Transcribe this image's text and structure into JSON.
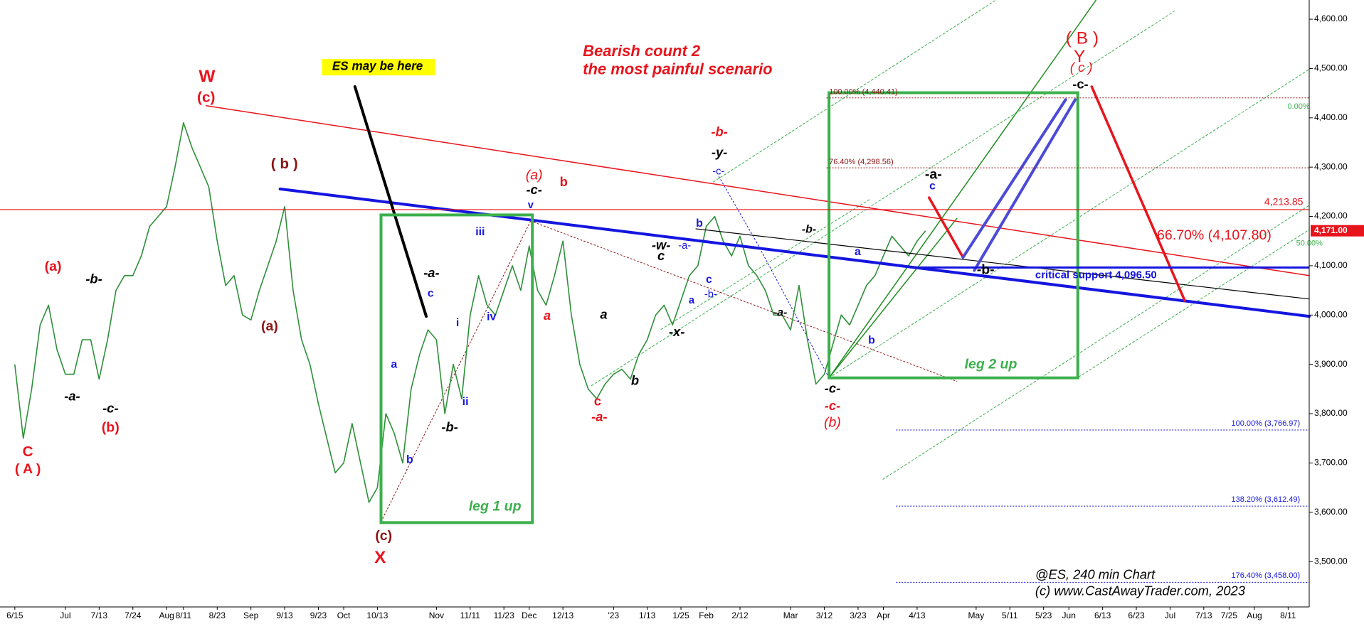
{
  "chart_data": {
    "type": "line",
    "categories": [
      "6/15",
      null,
      null,
      null,
      null,
      null,
      "Jul",
      null,
      null,
      null,
      "7/13",
      null,
      null,
      null,
      "7/24",
      null,
      null,
      null,
      "Aug",
      null,
      "8/11",
      null,
      null,
      null,
      "8/23",
      null,
      null,
      null,
      "Sep",
      null,
      null,
      null,
      "9/13",
      null,
      null,
      null,
      "9/23",
      null,
      null,
      "Oct",
      null,
      null,
      null,
      "10/13",
      null,
      null,
      null,
      null,
      null,
      null,
      "Nov",
      null,
      null,
      null,
      "11/11",
      null,
      null,
      null,
      "11/23",
      null,
      null,
      "Dec",
      null,
      null,
      null,
      "12/13",
      null,
      null,
      null,
      null,
      null,
      "'23",
      null,
      null,
      null,
      "1/13",
      null,
      null,
      null,
      "1/25",
      null,
      null,
      "Feb",
      null,
      null,
      null,
      "2/12",
      null,
      null,
      null,
      null,
      null,
      "Mar",
      null,
      null,
      null,
      "3/12",
      null,
      null,
      null,
      "3/23",
      null,
      null,
      "Apr",
      null,
      null,
      null,
      "4/13",
      null,
      null,
      null,
      null,
      null,
      null,
      "May",
      null,
      null,
      null,
      "5/11",
      null,
      null,
      null,
      "5/23",
      null,
      null,
      "Jun",
      null,
      null,
      null,
      "6/13",
      null,
      null,
      null,
      "6/23",
      null,
      null,
      null,
      "Jul",
      null,
      null,
      null,
      "7/13",
      null,
      null,
      "7/25",
      null,
      null,
      "Aug",
      null,
      null,
      null,
      "8/11",
      null,
      null
    ],
    "series": [
      {
        "color": "#2f8f3a",
        "values": [
          3900,
          3750,
          3850,
          3980,
          4020,
          3930,
          3880,
          3880,
          3950,
          3950,
          3870,
          3950,
          4050,
          4080,
          4080,
          4120,
          4180,
          4200,
          4220,
          4300,
          4390,
          4340,
          4300,
          4260,
          4150,
          4060,
          4080,
          4000,
          3990,
          4050,
          4100,
          4150,
          4220,
          4050,
          3950,
          3900,
          3820,
          3750,
          3680,
          3700,
          3780,
          3700,
          3620,
          3650,
          3800,
          3760,
          3700,
          3850,
          3920,
          3970,
          3950,
          3800,
          3900,
          3830,
          4000,
          4080,
          4020,
          4000,
          4050,
          4100,
          4050,
          4140,
          4050,
          4020,
          4080,
          4150,
          4000,
          3900,
          3850,
          3830,
          3860,
          3880,
          3890,
          3870,
          3920,
          3950,
          4000,
          4020,
          3980,
          4030,
          4080,
          4100,
          4180,
          4200,
          4150,
          4120,
          4160,
          4100,
          4080,
          4050,
          4000,
          4000,
          3970,
          4060,
          3950,
          3860,
          3880,
          3940,
          4000,
          3980,
          4020,
          4060,
          4080,
          4120,
          4160,
          4140,
          4120,
          4150,
          4171,
          null,
          null,
          null,
          null,
          null,
          null,
          null,
          null,
          null,
          null,
          null,
          null,
          null,
          null,
          null,
          null,
          null,
          null,
          null,
          null,
          null,
          null,
          null,
          null,
          null,
          null,
          null,
          null,
          null,
          null,
          null,
          null,
          null,
          null,
          null,
          null,
          null,
          null,
          null,
          null,
          null,
          null,
          null,
          null,
          null
        ]
      }
    ],
    "ylim": [
      3408,
      4639
    ],
    "yticks": [
      {
        "value": 3500,
        "label": "3,500.00"
      },
      {
        "value": 3600,
        "label": "3,600.00"
      },
      {
        "value": 3700,
        "label": "3,700.00"
      },
      {
        "value": 3800,
        "label": "3,800.00"
      },
      {
        "value": 3900,
        "label": "3,900.00"
      },
      {
        "value": 4000,
        "label": "4,000.00"
      },
      {
        "value": 4100,
        "label": "4,100.00"
      },
      {
        "value": 4200,
        "label": "4,200.00"
      },
      {
        "value": 4300,
        "label": "4,300.00"
      },
      {
        "value": 4400,
        "label": "4,400.00"
      },
      {
        "value": 4500,
        "label": "4,500.00"
      },
      {
        "value": 4600,
        "label": "4,600.00"
      }
    ],
    "last_price": {
      "value": 4171,
      "label": "4,171.00",
      "color": "#e8141c"
    },
    "levels": [
      {
        "label": "4,213.85",
        "value": 4213.85,
        "color": "#e8141c"
      },
      {
        "label": "critical support 4,096.50",
        "value": 4096.5,
        "color": "#1515e0"
      },
      {
        "label": "100.00% (4,440.41)",
        "value": 4440.41,
        "color": "#8b1515"
      },
      {
        "label": "76.40% (4,298.56)",
        "value": 4298.56,
        "color": "#8b1515"
      },
      {
        "label": "100.00% (3,766.97)",
        "value": 3766.97,
        "color": "#1515e0"
      },
      {
        "label": "138.20% (3,612.49)",
        "value": 3612.49,
        "color": "#1515e0"
      },
      {
        "label": "176.40% (3,458.00)",
        "value": 3458,
        "color": "#1515e0"
      }
    ],
    "annotations": [
      {
        "text": "Bearish count 2",
        "color": "#e8141c"
      },
      {
        "text": "the most painful scenario",
        "color": "#e8141c"
      },
      {
        "text": "W",
        "color": "#e8141c"
      },
      {
        "text": "(c)",
        "color": "#e8141c"
      },
      {
        "text": "(a)",
        "color": "#e8141c"
      },
      {
        "text": "C",
        "color": "#e8141c"
      },
      {
        "text": "( A )",
        "color": "#e8141c"
      },
      {
        "text": "(b)",
        "color": "#e8141c"
      },
      {
        "text": "( b )",
        "color": "#8b1515"
      },
      {
        "text": "(a)",
        "color": "#8b1515"
      },
      {
        "text": "(c)",
        "color": "#8b1515"
      },
      {
        "text": "X",
        "color": "#e8141c"
      },
      {
        "text": "(a)",
        "color": "#e8141c"
      },
      {
        "text": "b",
        "color": "#e8141c"
      },
      {
        "text": "a",
        "color": "#e8141c"
      },
      {
        "text": "c",
        "color": "#e8141c"
      },
      {
        "text": "-a-",
        "color": "#e8141c"
      },
      {
        "text": "-b-",
        "color": "#e8141c"
      },
      {
        "text": "-c-",
        "color": "#e8141c"
      },
      {
        "text": "(b)",
        "color": "#e8141c"
      },
      {
        "text": "( B )",
        "color": "#e8141c"
      },
      {
        "text": "Y",
        "color": "#e8141c"
      },
      {
        "text": "( c )",
        "color": "#e8141c"
      },
      {
        "text": "66.70% (4,107.80)",
        "color": "#e8141c"
      },
      {
        "text": "-b-",
        "color": "#000000"
      },
      {
        "text": "-a-",
        "color": "#000000"
      },
      {
        "text": "-c-",
        "color": "#000000"
      },
      {
        "text": "-a-",
        "color": "#000000"
      },
      {
        "text": "-b-",
        "color": "#000000"
      },
      {
        "text": "-c-",
        "color": "#000000"
      },
      {
        "text": "a",
        "color": "#000000"
      },
      {
        "text": "b",
        "color": "#000000"
      },
      {
        "text": "-w-",
        "color": "#000000"
      },
      {
        "text": "c",
        "color": "#000000"
      },
      {
        "text": "-x-",
        "color": "#000000"
      },
      {
        "text": "-y-",
        "color": "#000000"
      },
      {
        "text": "-b-",
        "color": "#000000"
      },
      {
        "text": "-a-",
        "color": "#000000"
      },
      {
        "text": "-c-",
        "color": "#000000"
      },
      {
        "text": "-a-",
        "color": "#000000"
      },
      {
        "text": "-b-",
        "color": "#000000"
      },
      {
        "text": "-c-",
        "color": "#000000"
      },
      {
        "text": "c",
        "color": "#1515e0"
      },
      {
        "text": "a",
        "color": "#1515e0"
      },
      {
        "text": "b",
        "color": "#1515e0"
      },
      {
        "text": "i",
        "color": "#1515e0"
      },
      {
        "text": "ii",
        "color": "#1515e0"
      },
      {
        "text": "iii",
        "color": "#1515e0"
      },
      {
        "text": "iv",
        "color": "#1515e0"
      },
      {
        "text": "v",
        "color": "#1515e0"
      },
      {
        "text": "-c-",
        "color": "#1515e0"
      },
      {
        "text": "b",
        "color": "#1515e0"
      },
      {
        "text": "-a-",
        "color": "#1515e0"
      },
      {
        "text": "c",
        "color": "#1515e0"
      },
      {
        "text": "-b-",
        "color": "#1515e0"
      },
      {
        "text": "a",
        "color": "#1515e0"
      },
      {
        "text": "b",
        "color": "#1515e0"
      },
      {
        "text": "a",
        "color": "#1515e0"
      },
      {
        "text": "c",
        "color": "#1515e0"
      },
      {
        "text": "leg 1 up",
        "color": "#3cb04c"
      },
      {
        "text": "leg 2 up",
        "color": "#3cb04c"
      },
      {
        "text": "@ES, 240 min Chart",
        "color": "#000000"
      },
      {
        "text": "(c) www.CastAwayTrader.com, 2023",
        "color": "#000000"
      },
      {
        "text": "ES may be here",
        "color": "#000000"
      },
      {
        "text": "50.00%",
        "color": "#3cb04c"
      },
      {
        "text": "0.00%",
        "color": "#3cb04c"
      }
    ]
  }
}
